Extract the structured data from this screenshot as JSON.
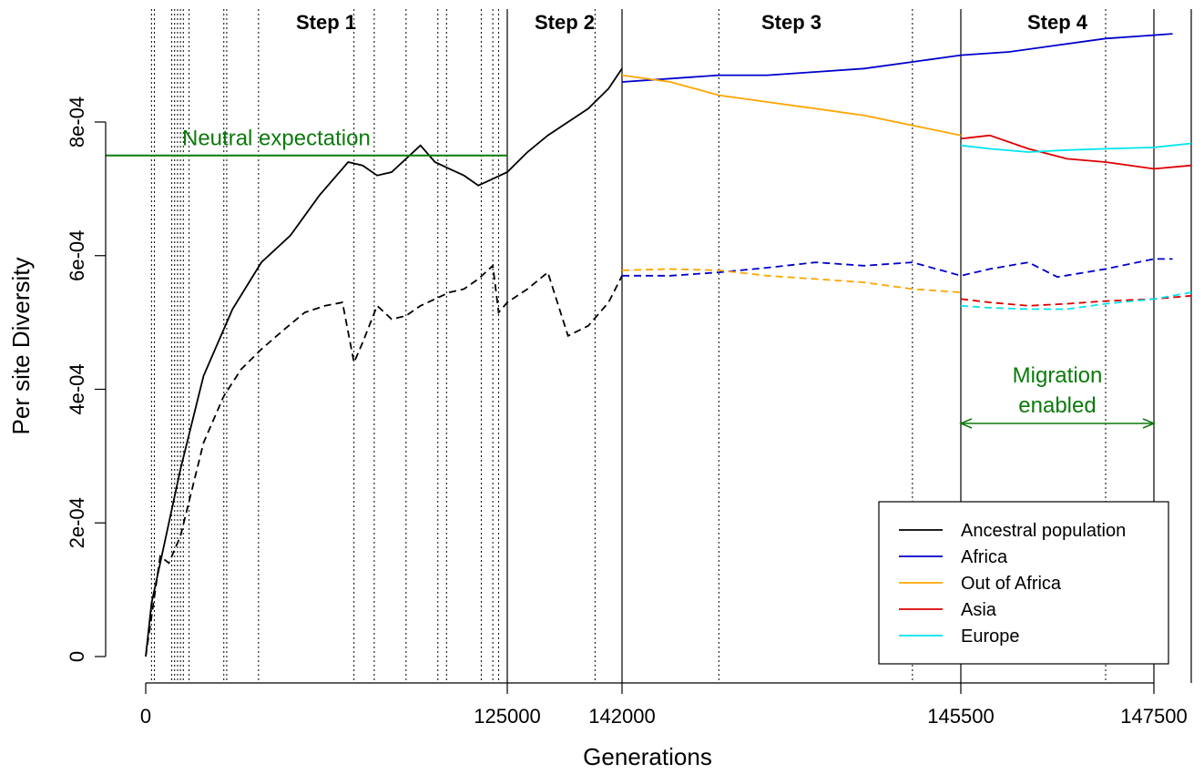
{
  "chart_data": {
    "type": "line",
    "xlabel": "Generations",
    "ylabel": "Per site Diversity",
    "ylim": [
      0,
      0.00095
    ],
    "x_ticks": [
      "0",
      "125000",
      "142000",
      "145500",
      "147500"
    ],
    "y_ticks": [
      "0",
      "2e-04",
      "4e-04",
      "6e-04",
      "8e-04"
    ],
    "y_tick_values": [
      0,
      0.0002,
      0.0004,
      0.0006,
      0.0008
    ],
    "steps": [
      "Step 1",
      "Step 2",
      "Step 3",
      "Step 4"
    ],
    "annotations": {
      "neutral": "Neutral expectation",
      "neutral_value": 0.00075,
      "migration_line1": "Migration",
      "migration_line2": "enabled"
    },
    "legend": {
      "placement": "bottom-right",
      "entries": [
        {
          "name": "Ancestral population",
          "color": "#000000"
        },
        {
          "name": "Africa",
          "color": "#0000cc"
        },
        {
          "name": "Out of Africa",
          "color": "#ffa500"
        },
        {
          "name": "Asia",
          "color": "#dd0000"
        },
        {
          "name": "Europe",
          "color": "#00e5ee"
        }
      ]
    },
    "series": [
      {
        "name": "Ancestral population",
        "style": "solid",
        "color": "#000000",
        "x": [
          0,
          2000,
          6000,
          12000,
          20000,
          30000,
          40000,
          50000,
          60000,
          70000,
          75000,
          80000,
          85000,
          90000,
          95000,
          100000,
          105000,
          110000,
          115000,
          120000,
          125000,
          128000,
          131000,
          134000,
          137000,
          140000,
          142000
        ],
        "y": [
          0,
          8e-05,
          0.00016,
          0.00028,
          0.00042,
          0.00052,
          0.00059,
          0.00063,
          0.00069,
          0.00074,
          0.000735,
          0.00072,
          0.000725,
          0.000745,
          0.000765,
          0.00074,
          0.00073,
          0.00072,
          0.000705,
          0.000715,
          0.000725,
          0.000755,
          0.00078,
          0.0008,
          0.00082,
          0.00085,
          0.00088
        ]
      },
      {
        "name": "Ancestral population",
        "style": "dashed",
        "color": "#000000",
        "x": [
          0,
          2000,
          5000,
          8000,
          12000,
          16000,
          20000,
          27000,
          33000,
          40000,
          48000,
          55000,
          62000,
          68000,
          72000,
          75000,
          80000,
          85000,
          90000,
          95000,
          100000,
          105000,
          110000,
          115000,
          120000,
          122000,
          125000,
          128000,
          131000,
          134000,
          137000,
          140000,
          142000
        ],
        "y": [
          0,
          6e-05,
          0.00015,
          0.00014,
          0.00018,
          0.00025,
          0.00032,
          0.00039,
          0.00043,
          0.00046,
          0.00049,
          0.000515,
          0.000525,
          0.00053,
          0.00044,
          0.00047,
          0.000525,
          0.000505,
          0.00051,
          0.000525,
          0.000535,
          0.000545,
          0.00055,
          0.000565,
          0.000585,
          0.000515,
          0.00053,
          0.00055,
          0.000575,
          0.00048,
          0.000495,
          0.00053,
          0.00057
        ]
      },
      {
        "name": "Africa",
        "style": "solid",
        "color": "#0000cc",
        "x": [
          142000,
          142500,
          143000,
          143500,
          144000,
          144500,
          145000,
          145500,
          146000,
          146500,
          147000,
          147500,
          147700
        ],
        "y": [
          0.00086,
          0.000865,
          0.00087,
          0.00087,
          0.000875,
          0.00088,
          0.00089,
          0.0009,
          0.000905,
          0.000915,
          0.000925,
          0.00093,
          0.000932
        ]
      },
      {
        "name": "Africa",
        "style": "dashed",
        "color": "#0000cc",
        "x": [
          142000,
          142500,
          143000,
          143500,
          144000,
          144500,
          145000,
          145500,
          145800,
          146200,
          146500,
          147000,
          147500,
          147700
        ],
        "y": [
          0.00057,
          0.00057,
          0.000575,
          0.000582,
          0.00059,
          0.000585,
          0.00059,
          0.00057,
          0.00058,
          0.00059,
          0.000568,
          0.00058,
          0.000595,
          0.000595
        ]
      },
      {
        "name": "Out of Africa",
        "style": "solid",
        "color": "#ffa500",
        "x": [
          142000,
          142500,
          143000,
          143500,
          144000,
          144500,
          145000,
          145500
        ],
        "y": [
          0.00087,
          0.00086,
          0.00084,
          0.00083,
          0.00082,
          0.00081,
          0.000795,
          0.00078
        ]
      },
      {
        "name": "Out of Africa",
        "style": "dashed",
        "color": "#ffa500",
        "x": [
          142000,
          142500,
          143000,
          143500,
          144000,
          144500,
          145000,
          145500
        ],
        "y": [
          0.000578,
          0.00058,
          0.000578,
          0.00057,
          0.000565,
          0.00056,
          0.00055,
          0.000545
        ]
      },
      {
        "name": "Asia",
        "style": "solid",
        "color": "#dd0000",
        "x": [
          145500,
          145800,
          146200,
          146600,
          147000,
          147500,
          147900
        ],
        "y": [
          0.000775,
          0.00078,
          0.00076,
          0.000745,
          0.00074,
          0.00073,
          0.000735
        ]
      },
      {
        "name": "Asia",
        "style": "dashed",
        "color": "#dd0000",
        "x": [
          145500,
          145800,
          146200,
          146600,
          147000,
          147500,
          147900
        ],
        "y": [
          0.000535,
          0.00053,
          0.000525,
          0.000528,
          0.000532,
          0.000535,
          0.00054
        ]
      },
      {
        "name": "Europe",
        "style": "solid",
        "color": "#00e5ee",
        "x": [
          145500,
          145800,
          146200,
          146600,
          147000,
          147500,
          147900
        ],
        "y": [
          0.000765,
          0.00076,
          0.000755,
          0.000758,
          0.00076,
          0.000762,
          0.000768
        ]
      },
      {
        "name": "Europe",
        "style": "dashed",
        "color": "#00e5ee",
        "x": [
          145500,
          145800,
          146200,
          146600,
          147000,
          147500,
          147900
        ],
        "y": [
          0.000525,
          0.000522,
          0.00052,
          0.00052,
          0.000528,
          0.000535,
          0.000545
        ]
      }
    ],
    "step_boundaries": [
      125000,
      142000,
      145500,
      147500,
      147900
    ],
    "dotted_event_x": [
      2000,
      3000,
      9000,
      10000,
      11000,
      12000,
      13000,
      15000,
      27000,
      28000,
      39000,
      72000,
      79000,
      90000,
      101000,
      104000,
      116000,
      120000,
      122000,
      138000,
      143000,
      145000,
      147000,
      149000
    ]
  }
}
